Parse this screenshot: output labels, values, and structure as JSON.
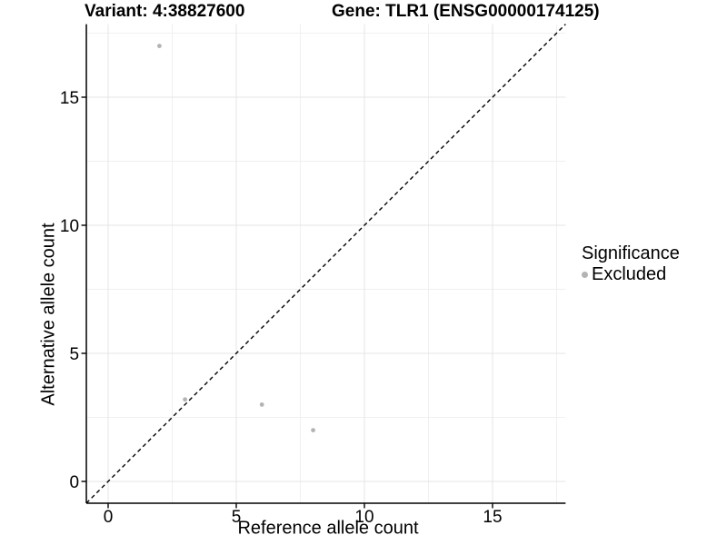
{
  "header": {
    "variant_title": "Variant: 4:38827600",
    "gene_title": "Gene: TLR1 (ENSG00000174125)"
  },
  "legend": {
    "title": "Significance",
    "items": [
      {
        "label": "Excluded",
        "color": "#b3b3b3"
      }
    ]
  },
  "chart_data": {
    "type": "scatter",
    "title": "Variant: 4:38827600 — Gene: TLR1 (ENSG00000174125)",
    "xlabel": "Reference allele count",
    "ylabel": "Alternative allele count",
    "xlim": [
      -0.85,
      17.85
    ],
    "ylim": [
      -0.85,
      17.85
    ],
    "x_major_ticks": [
      0,
      5,
      10,
      15
    ],
    "x_minor_ticks": [
      2.5,
      7.5,
      12.5,
      17.5
    ],
    "y_major_ticks": [
      0,
      5,
      10,
      15
    ],
    "y_minor_ticks": [
      2.5,
      7.5,
      12.5,
      17.5
    ],
    "grid": true,
    "legend_position": "right",
    "identity_line": {
      "style": "dashed",
      "color": "#000000",
      "slope": 1,
      "intercept": 0
    },
    "series": [
      {
        "name": "Excluded",
        "color": "#b3b3b3",
        "points": [
          [
            2,
            17
          ],
          [
            3,
            3.2
          ],
          [
            6,
            3
          ],
          [
            8,
            2
          ]
        ]
      }
    ]
  },
  "colors": {
    "background": "#ffffff",
    "grid_major": "#e4e4e4",
    "grid_minor": "#f0f0f0",
    "axis": "#000000",
    "text": "#000000"
  }
}
